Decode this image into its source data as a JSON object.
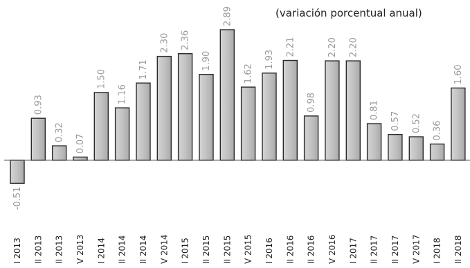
{
  "chart_data": {
    "type": "bar",
    "subtitle": "(variación porcentual anual)",
    "categories": [
      "I 2013",
      "II 2013",
      "II 2013",
      "V 2013",
      "I 2014",
      "II 2014",
      "II 2014",
      "V 2014",
      "I 2015",
      "II 2015",
      "II 2015",
      "V 2015",
      "I 2016",
      "II 2016",
      "II 2016",
      "V 2016",
      "I 2017",
      "II 2017",
      "II 2017",
      "V 2017",
      "I 2018",
      "II 2018"
    ],
    "values": [
      -0.51,
      0.93,
      0.32,
      0.07,
      1.5,
      1.16,
      1.71,
      2.3,
      2.36,
      1.9,
      2.89,
      1.62,
      1.93,
      2.21,
      0.98,
      2.2,
      2.2,
      0.81,
      0.57,
      0.52,
      0.36,
      1.6
    ],
    "value_labels": [
      "-0.51",
      "0.93",
      "0.32",
      "0.07",
      "1.50",
      "1.16",
      "1.71",
      "2.30",
      "2.36",
      "1.90",
      "2.89",
      "1.62",
      "1.93",
      "2.21",
      "0.98",
      "2.20",
      "2.20",
      "0.81",
      "0.57",
      "0.52",
      "0.36",
      "1.60"
    ],
    "ylim": [
      -0.6,
      2.9
    ],
    "grid": false,
    "legend": "none",
    "bar_color": "#c4c4c4",
    "value_label_color": "#9a9a9a"
  }
}
